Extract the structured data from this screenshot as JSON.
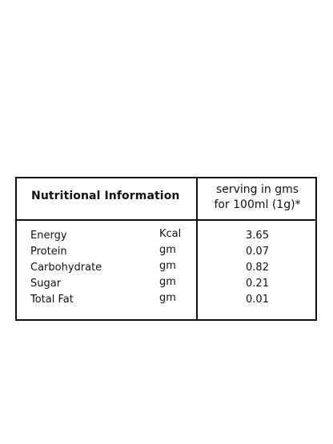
{
  "table": {
    "header_left": "Nutritional Information",
    "header_right_line1": "serving in gms",
    "header_right_line2": "for 100ml (1g)*",
    "rows": [
      {
        "name": "Energy",
        "unit": "Kcal",
        "value": "3.65"
      },
      {
        "name": "Protein",
        "unit": "gm",
        "value": "0.07"
      },
      {
        "name": "Carbohydrate",
        "unit": "gm",
        "value": "0.82"
      },
      {
        "name": "Sugar",
        "unit": "gm",
        "value": "0.21"
      },
      {
        "name": "Total Fat",
        "unit": "gm",
        "value": "0.01"
      }
    ]
  }
}
